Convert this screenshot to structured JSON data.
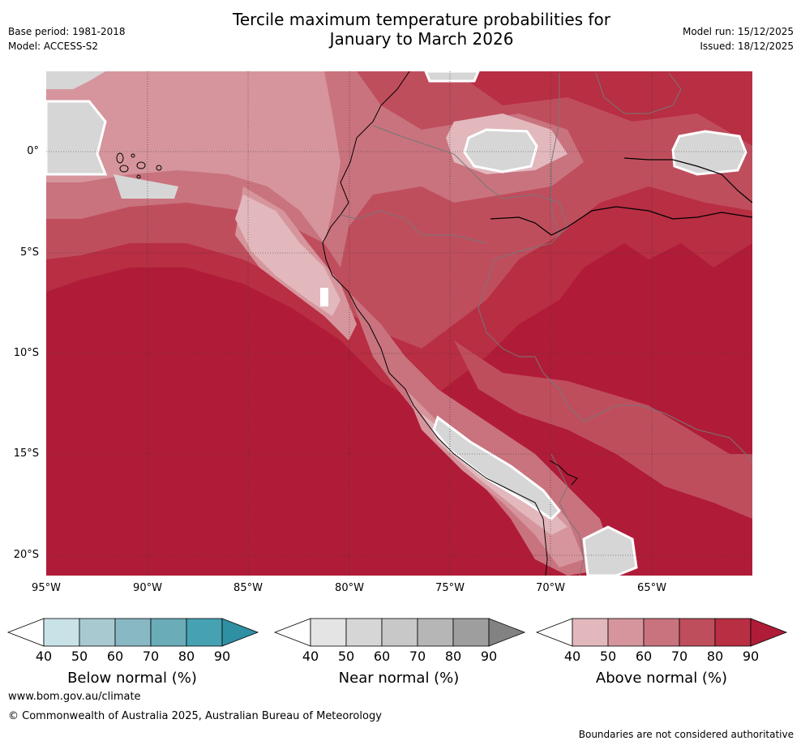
{
  "title_line1": "Tercile maximum temperature probabilities for",
  "title_line2": "January to March 2026",
  "base_period": "Base period: 1981-2018",
  "model": "Model: ACCESS-S2",
  "model_run": "Model run: 15/12/2025",
  "issued": "Issued: 18/12/2025",
  "map": {
    "region": "Western South America (Ecuador, Peru, northern Bolivia/Chile, western Brazil, Galápagos)",
    "lat_labels": [
      "0°",
      "5°S",
      "10°S",
      "15°S",
      "20°S"
    ],
    "lon_labels": [
      "95°W",
      "90°W",
      "85°W",
      "80°W",
      "75°W",
      "70°W",
      "65°W"
    ]
  },
  "legend": {
    "below": {
      "title": "Below normal (%)",
      "ticks": [
        "40",
        "50",
        "60",
        "70",
        "80",
        "90"
      ],
      "colors": [
        "#ffffff",
        "#c8e2e8",
        "#a9c9d0",
        "#88b8c4",
        "#6aacb8",
        "#46a2b2",
        "#2f8fa3"
      ]
    },
    "near": {
      "title": "Near normal (%)",
      "ticks": [
        "40",
        "50",
        "60",
        "70",
        "80",
        "90"
      ],
      "colors": [
        "#ffffff",
        "#e4e4e4",
        "#d6d6d6",
        "#c8c8c8",
        "#b6b6b6",
        "#9e9e9e",
        "#828282"
      ]
    },
    "above": {
      "title": "Above normal (%)",
      "ticks": [
        "40",
        "50",
        "60",
        "70",
        "80",
        "90"
      ],
      "colors": [
        "#ffffff",
        "#e2b8bd",
        "#d6959c",
        "#c9737e",
        "#bf4e5d",
        "#b82e42",
        "#b01c38"
      ]
    }
  },
  "footer": {
    "url": "www.bom.gov.au/climate",
    "copyright": "© Commonwealth of Australia 2025, Australian Bureau of Meteorology",
    "disclaimer": "Boundaries are not considered authoritative"
  }
}
